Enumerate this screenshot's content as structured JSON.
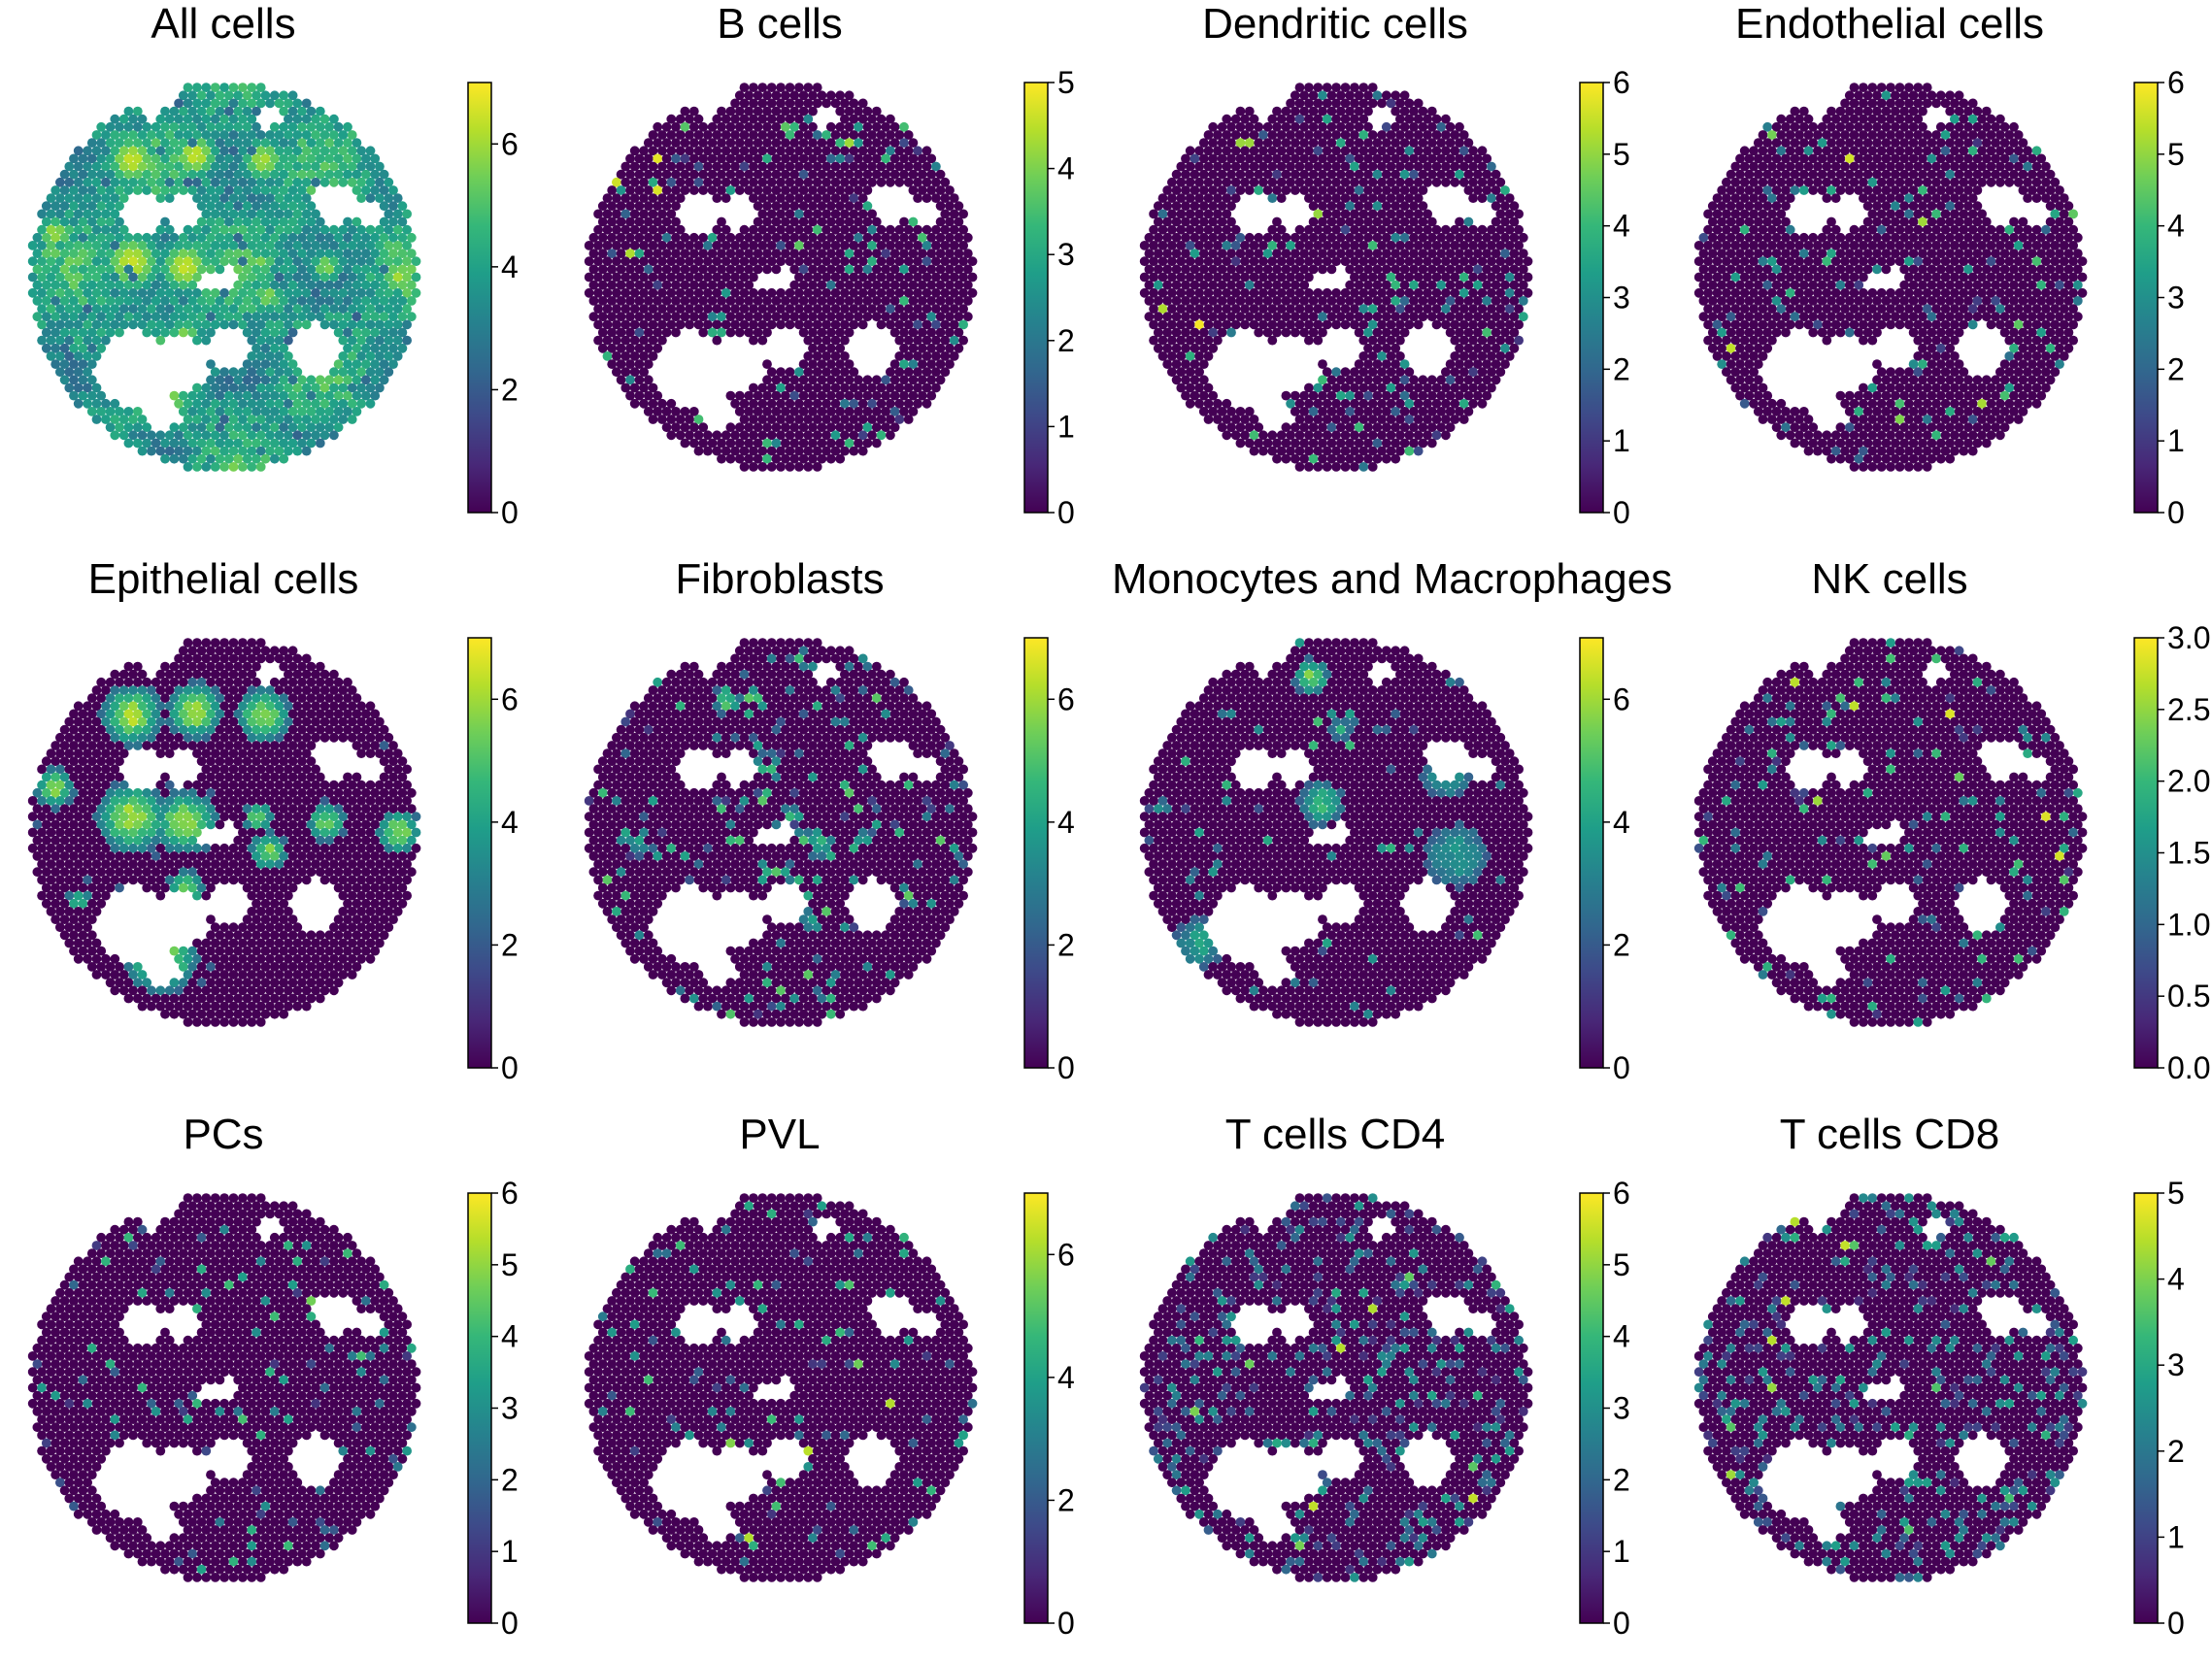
{
  "colormap": {
    "name": "viridis",
    "stops": [
      "#440154",
      "#482878",
      "#3e4989",
      "#31688e",
      "#26828e",
      "#1f9e89",
      "#35b779",
      "#6ece58",
      "#b5de2b",
      "#fde725"
    ]
  },
  "chart_data": [
    {
      "type": "heatmap",
      "title": "All cells",
      "vmax": 7,
      "ticks": [
        "0",
        "2",
        "4",
        "6"
      ],
      "tick_values": [
        0,
        2,
        4,
        6
      ],
      "pattern": "all"
    },
    {
      "type": "heatmap",
      "title": "B cells",
      "vmax": 5,
      "ticks": [
        "0",
        "1",
        "2",
        "3",
        "4",
        "5"
      ],
      "tick_values": [
        0,
        1,
        2,
        3,
        4,
        5
      ],
      "pattern": "sparse"
    },
    {
      "type": "heatmap",
      "title": "Dendritic cells",
      "vmax": 6,
      "ticks": [
        "0",
        "1",
        "2",
        "3",
        "4",
        "5",
        "6"
      ],
      "tick_values": [
        0,
        1,
        2,
        3,
        4,
        5,
        6
      ],
      "pattern": "sparse"
    },
    {
      "type": "heatmap",
      "title": "Endothelial cells",
      "vmax": 6,
      "ticks": [
        "0",
        "1",
        "2",
        "3",
        "4",
        "5",
        "6"
      ],
      "tick_values": [
        0,
        1,
        2,
        3,
        4,
        5,
        6
      ],
      "pattern": "sparse"
    },
    {
      "type": "heatmap",
      "title": "Epithelial cells",
      "vmax": 7,
      "ticks": [
        "0",
        "2",
        "4",
        "6"
      ],
      "tick_values": [
        0,
        2,
        4,
        6
      ],
      "pattern": "epithelial"
    },
    {
      "type": "heatmap",
      "title": "Fibroblasts",
      "vmax": 7,
      "ticks": [
        "0",
        "2",
        "4",
        "6"
      ],
      "tick_values": [
        0,
        2,
        4,
        6
      ],
      "pattern": "fibro"
    },
    {
      "type": "heatmap",
      "title": "Monocytes and Macrophages",
      "vmax": 7,
      "ticks": [
        "0",
        "2",
        "4",
        "6"
      ],
      "tick_values": [
        0,
        2,
        4,
        6
      ],
      "pattern": "mono"
    },
    {
      "type": "heatmap",
      "title": "NK cells",
      "vmax": 3,
      "ticks": [
        "0.0",
        "0.5",
        "1.0",
        "1.5",
        "2.0",
        "2.5",
        "3.0"
      ],
      "tick_values": [
        0,
        0.5,
        1,
        1.5,
        2,
        2.5,
        3
      ],
      "pattern": "sparse"
    },
    {
      "type": "heatmap",
      "title": "PCs",
      "vmax": 6,
      "ticks": [
        "0",
        "1",
        "2",
        "3",
        "4",
        "5",
        "6"
      ],
      "tick_values": [
        0,
        1,
        2,
        3,
        4,
        5,
        6
      ],
      "pattern": "sparse"
    },
    {
      "type": "heatmap",
      "title": "PVL",
      "vmax": 7,
      "ticks": [
        "0",
        "2",
        "4",
        "6"
      ],
      "tick_values": [
        0,
        2,
        4,
        6
      ],
      "pattern": "sparse"
    },
    {
      "type": "heatmap",
      "title": "T cells CD4",
      "vmax": 6,
      "ticks": [
        "0",
        "1",
        "2",
        "3",
        "4",
        "5",
        "6"
      ],
      "tick_values": [
        0,
        1,
        2,
        3,
        4,
        5,
        6
      ],
      "pattern": "medium"
    },
    {
      "type": "heatmap",
      "title": "T cells CD8",
      "vmax": 5,
      "ticks": [
        "0",
        "1",
        "2",
        "3",
        "4",
        "5"
      ],
      "tick_values": [
        0,
        1,
        2,
        3,
        4,
        5
      ],
      "pattern": "medium"
    }
  ]
}
